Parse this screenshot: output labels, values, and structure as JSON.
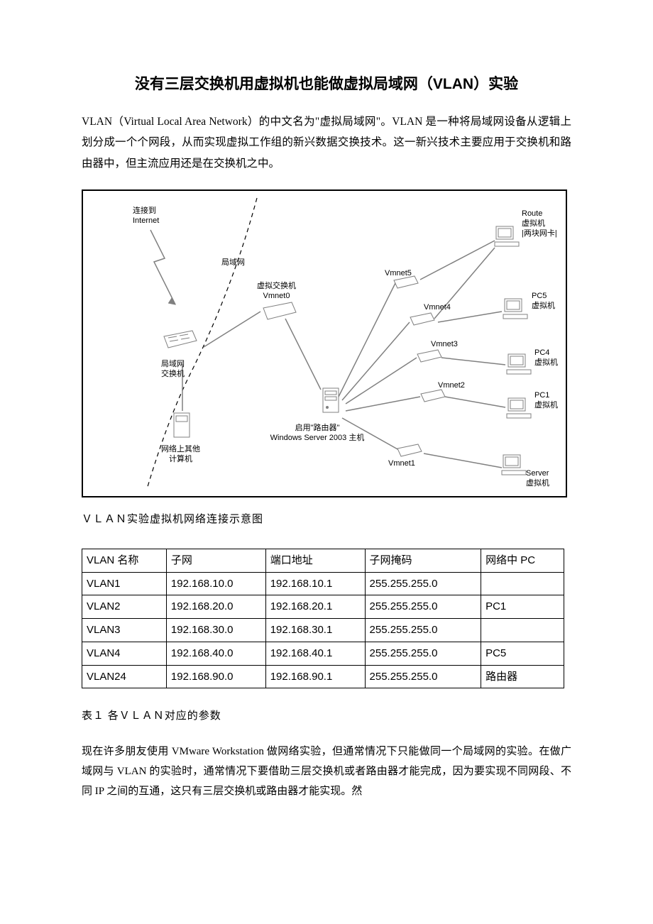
{
  "title": "没有三层交换机用虚拟机也能做虚拟局域网（VLAN）实验",
  "intro": "VLAN（Virtual Local Area Network）的中文名为\"虚拟局域网\"。VLAN 是一种将局域网设备从逻辑上划分成一个个网段，从而实现虚拟工作组的新兴数据交换技术。这一新兴技术主要应用于交换机和路由器中，但主流应用还是在交换机之中。",
  "diagram": {
    "caption": "ＶＬＡＮ实验虚拟机网络连接示意图",
    "labels": {
      "internet": "连接到\nInternet",
      "lan": "局域网",
      "vswitch": "虚拟交换机\nVmnet0",
      "lan_switch": "局域网\n交换机",
      "other_pc": "网络上其他\n计算机",
      "host": "启用\"路由器\"\nWindows Server 2003 主机",
      "vmnet1": "Vmnet1",
      "vmnet2": "Vmnet2",
      "vmnet3": "Vmnet3",
      "vmnet4": "Vmnet4",
      "vmnet5": "Vmnet5",
      "route": "Route\n虚拟机\n|两块网卡|",
      "pc5": "PC5\n虚拟机",
      "pc4": "PC4\n虚拟机",
      "pc1": "PC1\n虚拟机",
      "server": "Server\n虚拟机"
    },
    "colors": {
      "border": "#000000",
      "line": "#808080",
      "dash": "#000000",
      "bg": "#ffffff",
      "node_fill": "#ffffff",
      "node_stroke": "#808080"
    }
  },
  "table": {
    "caption": "表１ 各ＶＬＡＮ对应的参数",
    "columns": [
      "VLAN 名称",
      "子网",
      "端口地址",
      "子网掩码",
      "网络中 PC"
    ],
    "rows": [
      [
        "VLAN1",
        "192.168.10.0",
        "192.168.10.1",
        "255.255.255.0",
        ""
      ],
      [
        "VLAN2",
        "192.168.20.0",
        "192.168.20.1",
        "255.255.255.0",
        "PC1"
      ],
      [
        "VLAN3",
        "192.168.30.0",
        "192.168.30.1",
        "255.255.255.0",
        ""
      ],
      [
        "VLAN4",
        "192.168.40.0",
        "192.168.40.1",
        "255.255.255.0",
        "PC5"
      ],
      [
        "VLAN24",
        "192.168.90.0",
        "192.168.90.1",
        "255.255.255.0",
        "路由器"
      ]
    ],
    "col_widths": [
      "110px",
      "130px",
      "130px",
      "155px",
      "110px"
    ]
  },
  "body_paragraph": "现在许多朋友使用 VMware Workstation 做网络实验，但通常情况下只能做同一个局域网的实验。在做广域网与 VLAN 的实验时，通常情况下要借助三层交换机或者路由器才能完成，因为要实现不同网段、不同 IP 之间的互通，这只有三层交换机或路由器才能实现。然"
}
